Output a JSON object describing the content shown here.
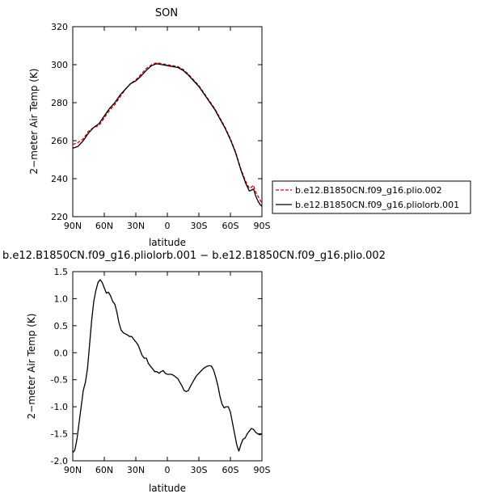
{
  "chart_data": [
    {
      "type": "line",
      "title": "SON",
      "xlabel": "latitude",
      "ylabel": "2−meter Air Temp (K)",
      "xlim": [
        90,
        -90
      ],
      "ylim": [
        220,
        320
      ],
      "xticks": [
        90,
        60,
        30,
        0,
        -30,
        -60,
        -90
      ],
      "xtick_labels": [
        "90N",
        "60N",
        "30N",
        "0",
        "30S",
        "60S",
        "90S"
      ],
      "yticks": [
        220,
        240,
        260,
        280,
        300,
        320
      ],
      "ytick_labels": [
        "220",
        "240",
        "260",
        "280",
        "300",
        "320"
      ],
      "legend_position": "right",
      "series": [
        {
          "name": "b.e12.B1850CN.f09_g16.plio.002",
          "color": "#d40000",
          "dash": "dashed",
          "x": [
            90,
            85,
            80,
            75,
            70,
            65,
            60,
            55,
            50,
            45,
            40,
            35,
            30,
            25,
            20,
            15,
            10,
            5,
            0,
            -5,
            -10,
            -15,
            -20,
            -25,
            -30,
            -35,
            -40,
            -45,
            -50,
            -55,
            -60,
            -65,
            -70,
            -75,
            -78,
            -80,
            -82,
            -84,
            -86,
            -88,
            -90
          ],
          "y": [
            258,
            259,
            261,
            265,
            267,
            268,
            272,
            276,
            279,
            283,
            287,
            290,
            292,
            295,
            298,
            300,
            301,
            300.5,
            300,
            299.5,
            299,
            297.5,
            295,
            292,
            289,
            285,
            281,
            277,
            272,
            267,
            261,
            254,
            245,
            238,
            235,
            235.5,
            236.5,
            233,
            231,
            229,
            227
          ]
        },
        {
          "name": "b.e12.B1850CN.f09_g16.pliolorb.001",
          "color": "#000000",
          "dash": "solid",
          "x": [
            90,
            85,
            80,
            75,
            70,
            65,
            60,
            55,
            50,
            45,
            40,
            35,
            30,
            25,
            20,
            15,
            10,
            5,
            0,
            -5,
            -10,
            -15,
            -20,
            -25,
            -30,
            -35,
            -40,
            -45,
            -50,
            -55,
            -60,
            -65,
            -70,
            -75,
            -78,
            -80,
            -82,
            -84,
            -86,
            -88,
            -90
          ],
          "y": [
            256,
            257,
            260,
            264,
            267,
            269,
            273,
            277,
            280,
            284,
            287,
            290,
            291.5,
            294,
            297,
            299.5,
            300.5,
            300,
            299.5,
            299,
            298.5,
            297,
            294.5,
            291.5,
            288.5,
            284.5,
            280.5,
            276.5,
            271.5,
            266.5,
            260.5,
            253.5,
            244.5,
            237,
            233.5,
            234,
            234.5,
            231,
            228.5,
            226.5,
            225.5
          ]
        }
      ]
    },
    {
      "type": "line",
      "title": "b.e12.B1850CN.f09_g16.pliolorb.001 − b.e12.B1850CN.f09_g16.plio.002",
      "xlabel": "latitude",
      "ylabel": "2−meter Air Temp (K)",
      "xlim": [
        90,
        -90
      ],
      "ylim": [
        -2.0,
        1.5
      ],
      "xticks": [
        90,
        60,
        30,
        0,
        -30,
        -60,
        -90
      ],
      "xtick_labels": [
        "90N",
        "60N",
        "30N",
        "0",
        "30S",
        "60S",
        "90S"
      ],
      "yticks": [
        -2.0,
        -1.5,
        -1.0,
        -0.5,
        0.0,
        0.5,
        1.0,
        1.5
      ],
      "ytick_labels": [
        "-2.0",
        "-1.5",
        "-1.0",
        "-0.5",
        "0.0",
        "0.5",
        "1.0",
        "1.5"
      ],
      "series": [
        {
          "color": "#000000",
          "dash": "solid",
          "x": [
            90,
            88,
            86,
            84,
            82,
            80,
            78,
            76,
            74,
            72,
            70,
            68,
            66,
            64,
            62,
            60,
            58,
            56,
            54,
            52,
            50,
            48,
            46,
            44,
            42,
            40,
            38,
            36,
            34,
            32,
            30,
            28,
            26,
            24,
            22,
            20,
            18,
            16,
            14,
            12,
            10,
            8,
            6,
            4,
            2,
            0,
            -2,
            -4,
            -6,
            -8,
            -10,
            -12,
            -14,
            -16,
            -18,
            -20,
            -22,
            -24,
            -26,
            -28,
            -30,
            -32,
            -34,
            -36,
            -38,
            -40,
            -42,
            -44,
            -46,
            -48,
            -50,
            -52,
            -54,
            -56,
            -58,
            -60,
            -62,
            -64,
            -66,
            -68,
            -70,
            -72,
            -74,
            -76,
            -78,
            -80,
            -82,
            -84,
            -86,
            -88,
            -90
          ],
          "y": [
            -1.85,
            -1.8,
            -1.6,
            -1.3,
            -1.0,
            -0.7,
            -0.55,
            -0.3,
            0.15,
            0.6,
            0.95,
            1.15,
            1.3,
            1.35,
            1.3,
            1.2,
            1.1,
            1.12,
            1.05,
            0.95,
            0.9,
            0.75,
            0.55,
            0.42,
            0.37,
            0.35,
            0.33,
            0.3,
            0.3,
            0.25,
            0.2,
            0.15,
            0.05,
            -0.05,
            -0.1,
            -0.1,
            -0.2,
            -0.25,
            -0.3,
            -0.35,
            -0.35,
            -0.38,
            -0.35,
            -0.33,
            -0.38,
            -0.4,
            -0.4,
            -0.4,
            -0.42,
            -0.45,
            -0.48,
            -0.55,
            -0.62,
            -0.7,
            -0.72,
            -0.7,
            -0.62,
            -0.55,
            -0.48,
            -0.42,
            -0.38,
            -0.34,
            -0.3,
            -0.27,
            -0.25,
            -0.24,
            -0.25,
            -0.32,
            -0.45,
            -0.6,
            -0.8,
            -0.95,
            -1.02,
            -1.0,
            -1.0,
            -1.1,
            -1.3,
            -1.5,
            -1.7,
            -1.82,
            -1.7,
            -1.6,
            -1.58,
            -1.5,
            -1.45,
            -1.4,
            -1.42,
            -1.47,
            -1.5,
            -1.52,
            -1.5
          ]
        }
      ]
    }
  ]
}
